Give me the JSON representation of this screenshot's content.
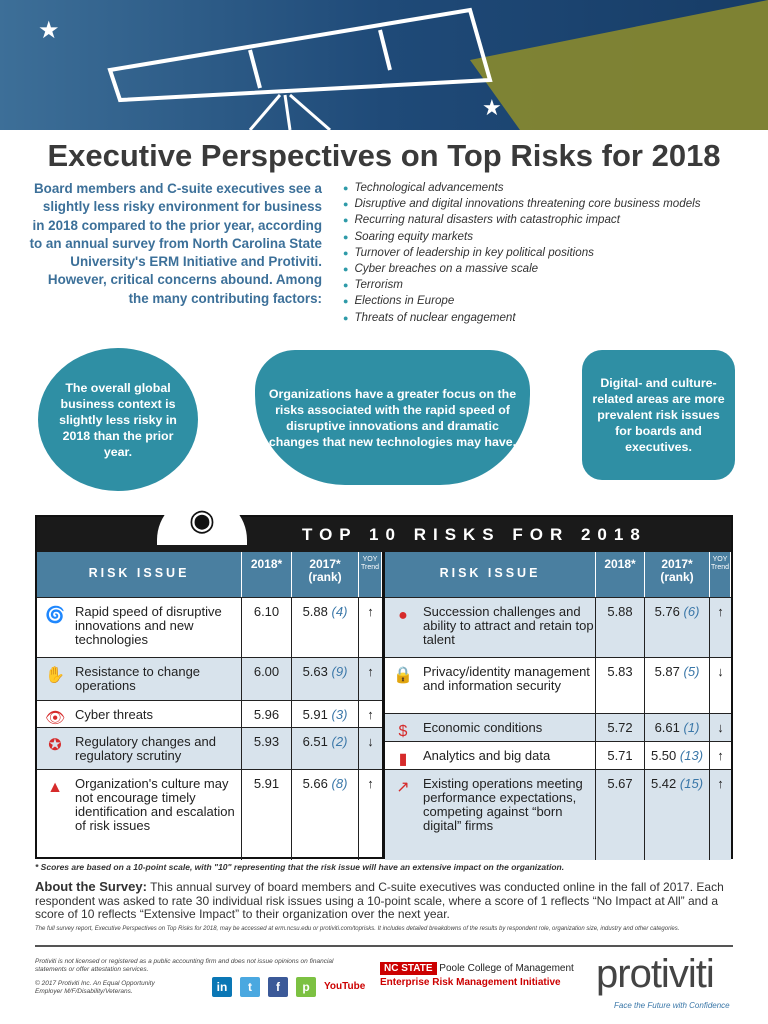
{
  "title": "Executive Perspectives on Top Risks for 2018",
  "intro": "Board members and C-suite executives see a slightly less risky environment for business in 2018 compared to the prior year, according to an annual survey from North Carolina State University's ERM Initiative and Protiviti. However, critical concerns abound. Among the many contributing factors:",
  "bullets": [
    "Technological advancements",
    "Disruptive and digital innovations threatening core business models",
    "Recurring natural disasters with catastrophic impact",
    "Soaring equity markets",
    "Turnover of leadership in key political positions",
    "Cyber breaches on a massive scale",
    "Terrorism",
    "Elections in Europe",
    "Threats of nuclear engagement"
  ],
  "bubbles": [
    "The overall global business context is slightly less risky in 2018 than the prior year.",
    "Organizations have a greater focus on the risks associated with the rapid speed of disruptive innovations and dramatic changes that new technologies may have.",
    "Digital- and culture-related areas are more prevalent risk issues for boards and executives."
  ],
  "table": {
    "title": "TOP 10 RISKS FOR 2018",
    "h_issue": "RISK ISSUE",
    "h_2018": "2018*",
    "h_2017": "2017*",
    "h_rank": "(rank)",
    "h_yoy1": "YOY",
    "h_yoy2": "Trend",
    "left": [
      {
        "issue": "Rapid speed of disruptive innovations and new technologies",
        "s2018": "6.10",
        "s2017": "5.88",
        "rank": "(4)",
        "trend": "↑",
        "icon": "tornado-icon"
      },
      {
        "issue": "Resistance to change operations",
        "s2018": "6.00",
        "s2017": "5.63",
        "rank": "(9)",
        "trend": "↑",
        "icon": "hand-stop-icon"
      },
      {
        "issue": "Cyber threats",
        "s2018": "5.96",
        "s2017": "5.91",
        "rank": "(3)",
        "trend": "↑",
        "icon": "eye-icon"
      },
      {
        "issue": "Regulatory changes and regulatory scrutiny",
        "s2018": "5.93",
        "s2017": "6.51",
        "rank": "(2)",
        "trend": "↓",
        "icon": "badge-icon"
      },
      {
        "issue": "Organization's culture may not encourage timely identification and escalation of risk issues",
        "s2018": "5.91",
        "s2017": "5.66",
        "rank": "(8)",
        "trend": "↑",
        "icon": "warning-icon"
      }
    ],
    "right": [
      {
        "issue": "Succession challenges and ability to attract and retain top talent",
        "s2018": "5.88",
        "s2017": "5.76",
        "rank": "(6)",
        "trend": "↑",
        "icon": "person-icon"
      },
      {
        "issue": "Privacy/identity management and information security",
        "s2018": "5.83",
        "s2017": "5.87",
        "rank": "(5)",
        "trend": "↓",
        "icon": "lock-icon"
      },
      {
        "issue": "Economic conditions",
        "s2018": "5.72",
        "s2017": "6.61",
        "rank": "(1)",
        "trend": "↓",
        "icon": "dollar-icon"
      },
      {
        "issue": "Analytics and big data",
        "s2018": "5.71",
        "s2017": "5.50",
        "rank": "(13)",
        "trend": "↑",
        "icon": "bar-chart-icon"
      },
      {
        "issue": "Existing operations meeting performance expectations, competing against “born digital” firms",
        "s2018": "5.67",
        "s2017": "5.42",
        "rank": "(15)",
        "trend": "↑",
        "icon": "trend-up-icon"
      }
    ]
  },
  "footnote": "* Scores are based on a 10-point scale, with \"10\" representing that the risk issue will have an extensive impact on the organization.",
  "about_label": "About the Survey:",
  "about": " This annual survey of board members and C-suite executives was conducted online in the fall of 2017. Each respondent was asked to rate 30 individual risk issues using a 10-point scale, where a score of 1 reflects “No Impact at All” and a score of 10 reflects “Extensive Impact” to their organization over the next year.",
  "full_report": "The full survey report, Executive Perspectives on Top Risks for 2018, may be accessed at erm.ncsu.edu or protiviti.com/toprisks. It includes detailed breakdowns of the results by respondent role, organization size, industry and other categories.",
  "disclaimer": "Protiviti is not licensed or registered as a public accounting firm and does not issue opinions on financial statements or offer attestation services.",
  "copyright": "© 2017 Protiviti Inc. An Equal Opportunity Employer M/F/Disability/Veterans.",
  "social": [
    "in",
    "t",
    "f",
    "p",
    "YouTube"
  ],
  "ncstate": "NC STATE",
  "poole": "Poole College of Management",
  "erm": "Enterprise Risk Management Initiative",
  "logo": "protiviti",
  "tagline": "Face the Future with Confidence",
  "colors": {
    "accent": "#2f8fa4",
    "header_blue": "#4a7fa0",
    "red": "#d62b2b"
  }
}
